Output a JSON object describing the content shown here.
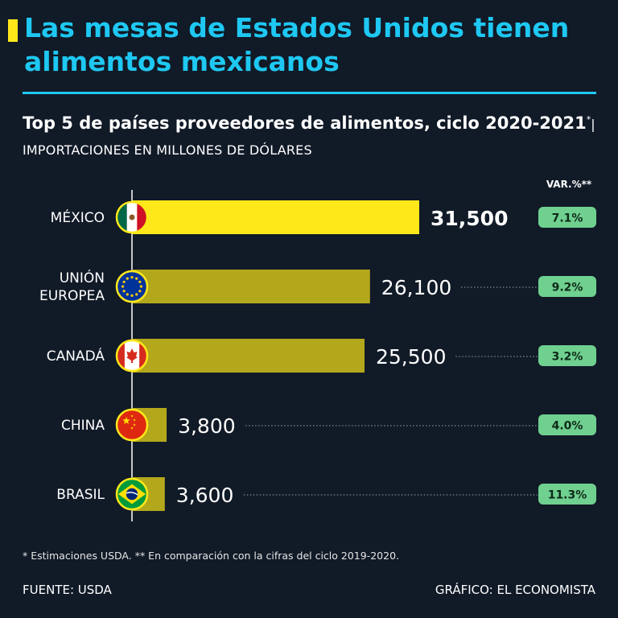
{
  "title": "Las mesas de Estados Unidos tienen alimentos mexicanos",
  "subtitle": {
    "main": "Top 5 de países proveedores de alimentos, ciclo 2020-2021",
    "marker": "*",
    "units": "| IMPORTACIONES EN MILLONES DE DÓLARES"
  },
  "var_header": "VAR.%**",
  "colors": {
    "background": "#111a27",
    "title": "#1ec8f2",
    "highlight_bar": "#ffe81a",
    "bar": "#b3a81c",
    "badge": "#6fd08f",
    "badge_text": "#0e2a18"
  },
  "chart_data": {
    "type": "bar",
    "orientation": "horizontal",
    "title": "Top 5 de países proveedores de alimentos, ciclo 2020-2021",
    "xlim": [
      0,
      31500
    ],
    "grid": false,
    "categories": [
      "MÉXICO",
      "UNIÓN EUROPEA",
      "CANADÁ",
      "CHINA",
      "BRASIL"
    ],
    "category_lines": [
      [
        "MÉXICO"
      ],
      [
        "UNIÓN",
        "EUROPEA"
      ],
      [
        "CANADÁ"
      ],
      [
        "CHINA"
      ],
      [
        "BRASIL"
      ]
    ],
    "values": [
      31500,
      26100,
      25500,
      3800,
      3600
    ],
    "value_labels": [
      "31,500",
      "26,100",
      "25,500",
      "3,800",
      "3,600"
    ],
    "variation_labels": [
      "7.1%",
      "9.2%",
      "3.2%",
      "4.0%",
      "11.3%"
    ],
    "flags": [
      "mexico-flag-icon",
      "eu-flag-icon",
      "canada-flag-icon",
      "china-flag-icon",
      "brazil-flag-icon"
    ],
    "highlight_index": 0
  },
  "footnote": "* Estimaciones USDA. ** En comparación con la cifras del ciclo 2019-2020.",
  "source": "FUENTE: USDA",
  "credit": "GRÁFICO: EL ECONOMISTA"
}
